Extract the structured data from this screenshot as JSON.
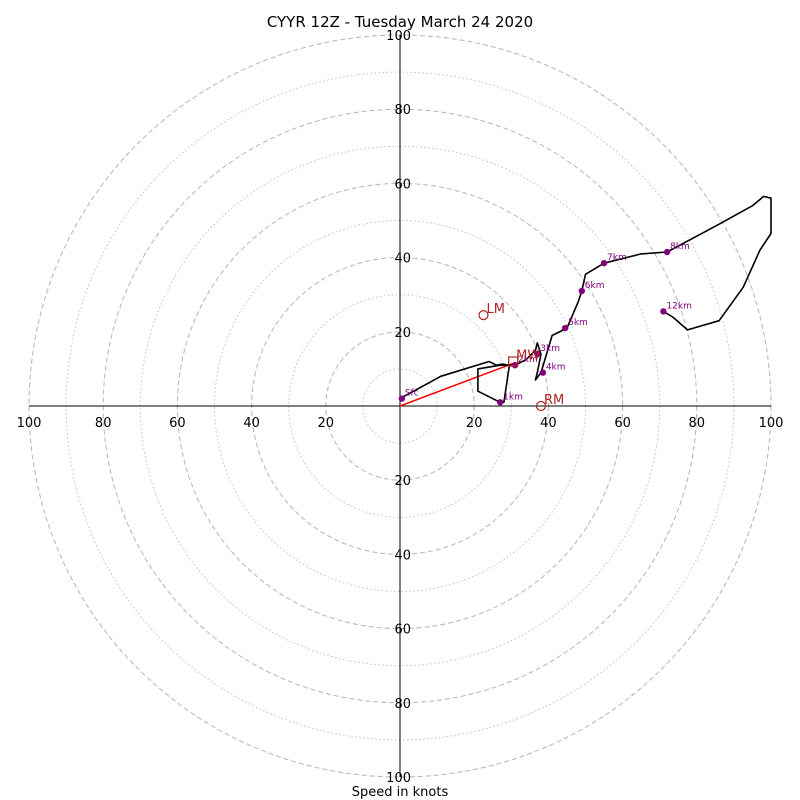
{
  "chart_data": {
    "type": "hodograph",
    "title": "CYYR 12Z - Tuesday March 24 2020",
    "xlabel": "Speed in knots",
    "range": [
      -100,
      100
    ],
    "ring_spacing": 10,
    "labeled_rings": [
      20,
      40,
      60,
      80,
      100
    ],
    "ticks": [
      {
        "label": "100",
        "value": -100
      },
      {
        "label": "80",
        "value": -80
      },
      {
        "label": "60",
        "value": -60
      },
      {
        "label": "40",
        "value": -40
      },
      {
        "label": "20",
        "value": -20
      },
      {
        "label": "20",
        "value": 20
      },
      {
        "label": "40",
        "value": 40
      },
      {
        "label": "60",
        "value": 60
      },
      {
        "label": "80",
        "value": 80
      },
      {
        "label": "100",
        "value": 100
      }
    ],
    "profile": [
      [
        0,
        2
      ],
      [
        11,
        8
      ],
      [
        24,
        12
      ],
      [
        26,
        11
      ],
      [
        27.5,
        11.3
      ],
      [
        29.5,
        11
      ],
      [
        28,
        1
      ],
      [
        27,
        1
      ],
      [
        21,
        4
      ],
      [
        21,
        10
      ],
      [
        27,
        11
      ],
      [
        29.5,
        11
      ],
      [
        31,
        11
      ],
      [
        34,
        12.5
      ],
      [
        36.5,
        15
      ],
      [
        37,
        17
      ],
      [
        38,
        14
      ],
      [
        37,
        9
      ],
      [
        36.5,
        7
      ],
      [
        38,
        9
      ],
      [
        41,
        19
      ],
      [
        45,
        21
      ],
      [
        48,
        28
      ],
      [
        49,
        31
      ],
      [
        50,
        35.5
      ],
      [
        55,
        38.5
      ],
      [
        65,
        41
      ],
      [
        72,
        41.5
      ],
      [
        86,
        49
      ],
      [
        95,
        54
      ],
      [
        98,
        56.5
      ],
      [
        100,
        56
      ],
      [
        100,
        46.5
      ],
      [
        97,
        42
      ],
      [
        92.5,
        32
      ],
      [
        86,
        23
      ],
      [
        77.5,
        20.5
      ],
      [
        73.5,
        24
      ],
      [
        71,
        25.5
      ]
    ],
    "height_markers": [
      {
        "label": "Sfc",
        "u": 0.5,
        "v": 2
      },
      {
        "label": "1km",
        "u": 27,
        "v": 1
      },
      {
        "label": "2km",
        "u": 31,
        "v": 11
      },
      {
        "label": "3km",
        "u": 37,
        "v": 14
      },
      {
        "label": "4km",
        "u": 38.5,
        "v": 9
      },
      {
        "label": "5km",
        "u": 44.5,
        "v": 21
      },
      {
        "label": "6km",
        "u": 49,
        "v": 31
      },
      {
        "label": "7km",
        "u": 55,
        "v": 38.5
      },
      {
        "label": "8km",
        "u": 72,
        "v": 41.5
      },
      {
        "label": "12km",
        "u": 71,
        "v": 25.5
      }
    ],
    "storm_motion": [
      {
        "label": "LM",
        "u": 22.5,
        "v": 24.5,
        "marker": "circle"
      },
      {
        "label": "MW",
        "u": 30.5,
        "v": 12,
        "marker": "square"
      },
      {
        "label": "RM",
        "u": 38,
        "v": 0,
        "marker": "circle"
      }
    ],
    "shear_vector": {
      "from": [
        0,
        0
      ],
      "to": [
        30.5,
        11.5
      ]
    },
    "colors": {
      "profile": "#000000",
      "height_marker": "#800080",
      "storm_motion": "#b22222",
      "shear_vector": "#ff0000",
      "ring": "#bbbbbb",
      "axis": "#000000"
    }
  }
}
